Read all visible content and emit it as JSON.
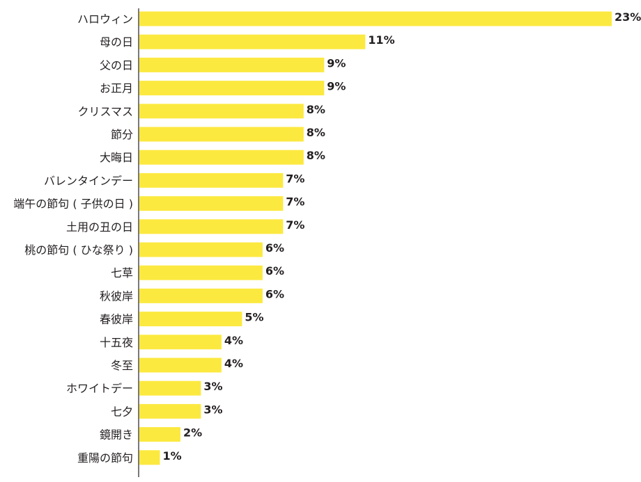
{
  "colors": {
    "bar": "#fce940",
    "axis": "#231f20",
    "text": "#231f20"
  },
  "chart_data": {
    "type": "bar",
    "orientation": "horizontal",
    "title": "",
    "xlabel": "",
    "ylabel": "",
    "value_suffix": "%",
    "xlim": [
      0,
      23
    ],
    "grid": false,
    "legend": "none",
    "categories": [
      "ハロウィン",
      "母の日",
      "父の日",
      "お正月",
      "クリスマス",
      "節分",
      "大晦日",
      "バレンタインデー",
      "端午の節句 ( 子供の日 )",
      "土用の丑の日",
      "桃の節句 ( ひな祭り )",
      "七草",
      "秋彼岸",
      "春彼岸",
      "十五夜",
      "冬至",
      "ホワイトデー",
      "七夕",
      "鏡開き",
      "重陽の節句"
    ],
    "values": [
      23,
      11,
      9,
      9,
      8,
      8,
      8,
      7,
      7,
      7,
      6,
      6,
      6,
      5,
      4,
      4,
      3,
      3,
      2,
      1
    ],
    "value_labels": [
      "23%",
      "11%",
      "9%",
      "9%",
      "8%",
      "8%",
      "8%",
      "7%",
      "7%",
      "7%",
      "6%",
      "6%",
      "6%",
      "5%",
      "4%",
      "4%",
      "3%",
      "3%",
      "2%",
      "1%"
    ]
  }
}
